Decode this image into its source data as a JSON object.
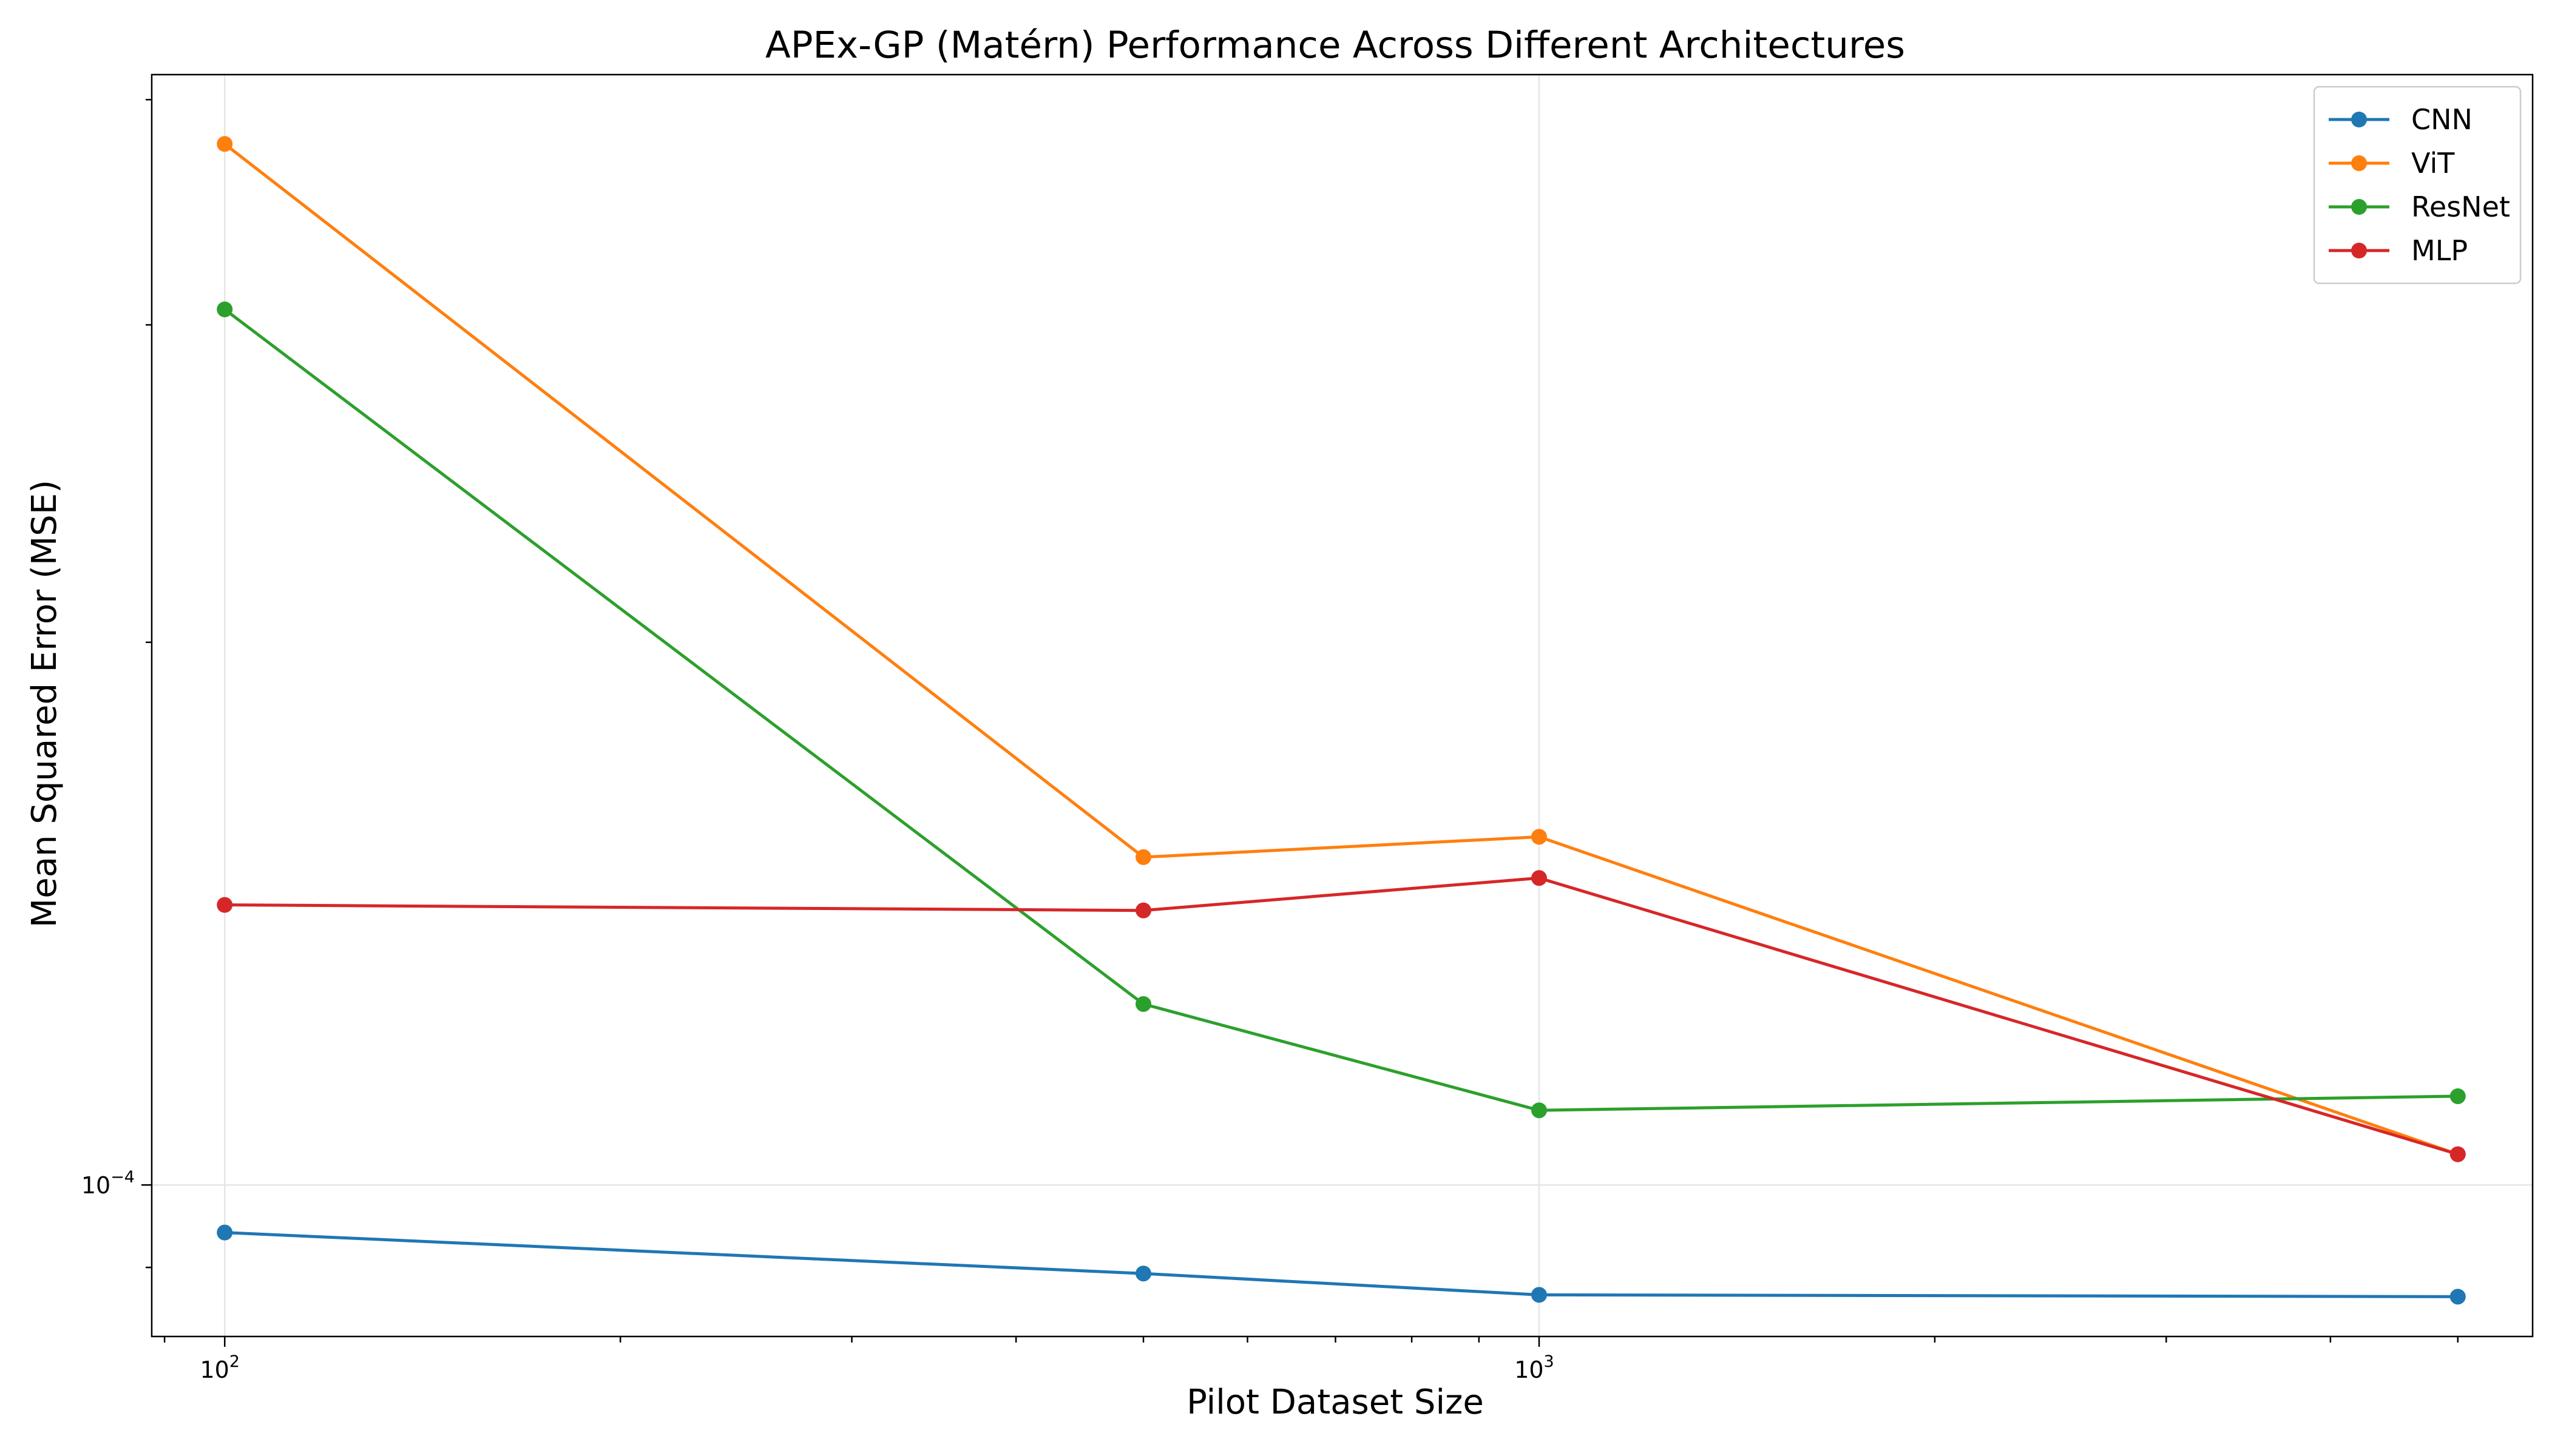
{
  "chart_data": {
    "type": "line",
    "title": "APEx-GP (Matérn) Performance Across Different Architectures",
    "xlabel": "Pilot Dataset Size",
    "ylabel": "Mean Squared Error (MSE)",
    "xscale": "log",
    "yscale": "log",
    "xlim": [
      88,
      5700
    ],
    "ylim": [
      8.24e-05,
      0.000413
    ],
    "x_major_ticks": [
      {
        "value": 100,
        "base": "10",
        "exp": "2"
      },
      {
        "value": 1000,
        "base": "10",
        "exp": "3"
      }
    ],
    "y_major_ticks": [
      {
        "value": 0.0001,
        "base": "10",
        "exp": "−4"
      }
    ],
    "grid": true,
    "legend_position": "top-right",
    "x": [
      100,
      500,
      1000,
      5000
    ],
    "series": [
      {
        "name": "CNN",
        "color": "#1f77b4",
        "values": [
          9.41e-05,
          8.93e-05,
          8.69e-05,
          8.67e-05
        ]
      },
      {
        "name": "ViT",
        "color": "#ff7f0e",
        "values": [
          0.000378,
          0.000152,
          0.000156,
          0.000104
        ]
      },
      {
        "name": "ResNet",
        "color": "#2ca02c",
        "values": [
          0.000306,
          0.000126,
          0.00011,
          0.000112
        ]
      },
      {
        "name": "MLP",
        "color": "#d62728",
        "values": [
          0.000143,
          0.000142,
          0.000148,
          0.000104
        ]
      }
    ]
  }
}
